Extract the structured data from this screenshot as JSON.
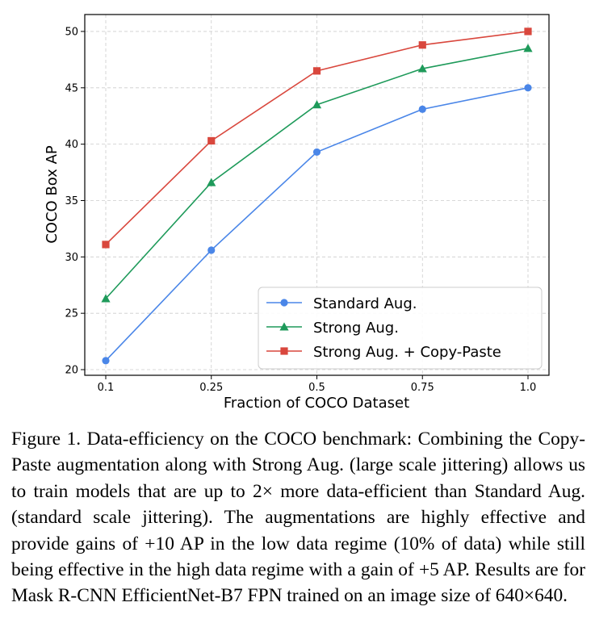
{
  "chart_data": {
    "type": "line",
    "xlabel": "Fraction of COCO Dataset",
    "ylabel": "COCO Box AP",
    "x_ticks": [
      "0.1",
      "0.25",
      "0.5",
      "0.75",
      "1.0"
    ],
    "y_ticks": [
      20,
      25,
      30,
      35,
      40,
      45,
      50
    ],
    "ylim": [
      19.5,
      51.5
    ],
    "grid": true,
    "legend_position": "lower-right",
    "series": [
      {
        "name": "Standard Aug.",
        "color": "#4a86e8",
        "marker": "circle",
        "values": [
          20.8,
          30.6,
          39.3,
          43.1,
          45.0
        ]
      },
      {
        "name": "Strong Aug.",
        "color": "#1e9a5a",
        "marker": "triangle",
        "values": [
          26.3,
          36.6,
          43.5,
          46.7,
          48.5
        ]
      },
      {
        "name": "Strong Aug. + Copy-Paste",
        "color": "#d9473d",
        "marker": "square",
        "values": [
          31.1,
          40.3,
          46.5,
          48.8,
          50.0
        ]
      }
    ]
  },
  "caption": "Figure 1. Data-efficiency on the COCO benchmark: Combining the Copy-Paste augmentation along with Strong Aug. (large scale jittering) allows us to train models that are up to 2× more data-efficient than Standard Aug. (standard scale jittering). The augmentations are highly effective and provide gains of +10 AP in the low data regime (10% of data) while still being effective in the high data regime with a gain of +5 AP. Results are for Mask R-CNN EfficientNet-B7 FPN trained on an image size of 640×640."
}
